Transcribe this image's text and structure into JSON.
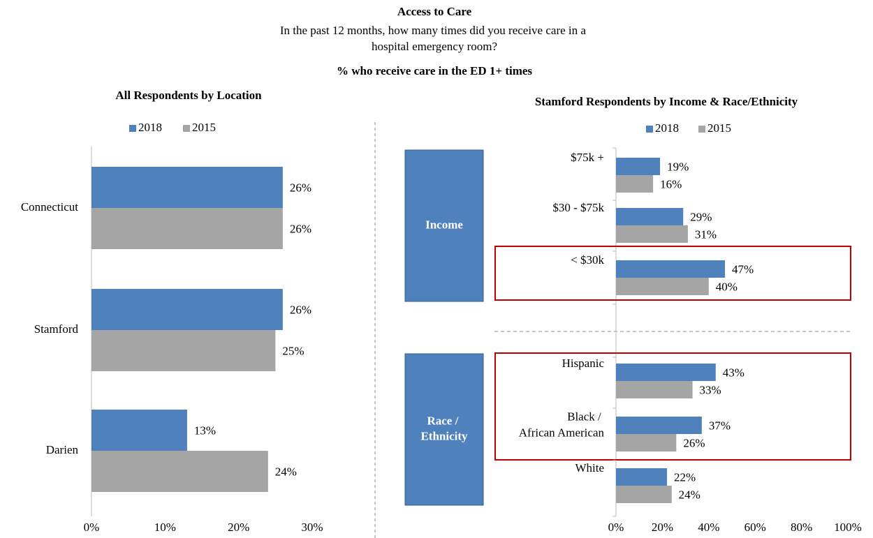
{
  "title": "Access to Care",
  "subtitle": "In the past 12 months, how many times did you receive care in a hospital emergency room?",
  "measure": "% who receive care in the ED 1+ times",
  "chart_data": [
    {
      "type": "hbar",
      "title": "All Respondents by Location",
      "categories": [
        "Connecticut",
        "Stamford",
        "Darien"
      ],
      "series": [
        {
          "name": "2018",
          "color": "#4f81bd",
          "values": [
            26,
            26,
            13
          ],
          "value_labels": [
            "26%",
            "26%",
            "13%"
          ]
        },
        {
          "name": "2015",
          "color": "#a5a5a5",
          "values": [
            26,
            25,
            24
          ],
          "value_labels": [
            "26%",
            "25%",
            "24%"
          ]
        }
      ],
      "xlim": [
        0,
        30
      ],
      "xticks": [
        {
          "value": 0,
          "label": "0%"
        },
        {
          "value": 10,
          "label": "10%"
        },
        {
          "value": 20,
          "label": "20%"
        },
        {
          "value": 30,
          "label": "30%"
        }
      ]
    },
    {
      "type": "hbar",
      "title": "Stamford Respondents by Income & Race/Ethnicity",
      "groups": [
        "Income",
        "Race / Ethnicity"
      ],
      "categories": [
        "$75k +",
        "$30 - $75k",
        "< $30k",
        "Hispanic",
        "Black / African American",
        "White"
      ],
      "series": [
        {
          "name": "2018",
          "color": "#4f81bd",
          "values": [
            19,
            29,
            47,
            43,
            37,
            22
          ],
          "value_labels": [
            "19%",
            "29%",
            "47%",
            "43%",
            "37%",
            "22%"
          ]
        },
        {
          "name": "2015",
          "color": "#a5a5a5",
          "values": [
            16,
            31,
            40,
            33,
            26,
            24
          ],
          "value_labels": [
            "16%",
            "31%",
            "40%",
            "33%",
            "26%",
            "24%"
          ]
        }
      ],
      "xlim": [
        0,
        100
      ],
      "xticks": [
        {
          "value": 0,
          "label": "0%"
        },
        {
          "value": 20,
          "label": "20%"
        },
        {
          "value": 40,
          "label": "40%"
        },
        {
          "value": 60,
          "label": "60%"
        },
        {
          "value": 80,
          "label": "80%"
        },
        {
          "value": 100,
          "label": "100%"
        }
      ]
    }
  ]
}
